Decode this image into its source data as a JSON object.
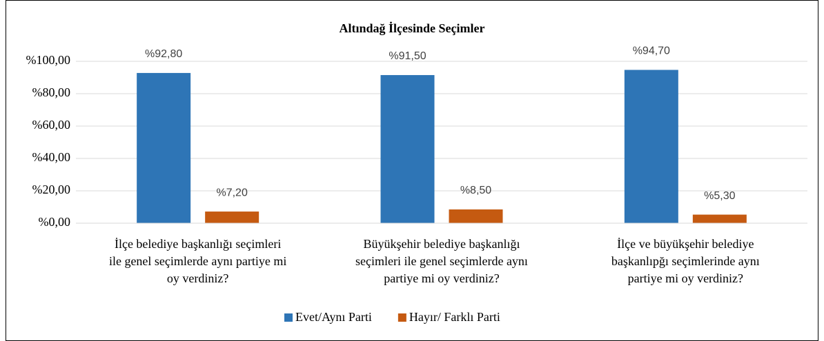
{
  "chart_data": {
    "type": "bar",
    "title": "Altındağ İlçesinde Seçimler",
    "categories": [
      [
        "İlçe belediye başkanlığı seçimleri",
        "ile genel seçimlerde aynı partiye mi",
        "oy verdiniz?"
      ],
      [
        "Büyükşehir belediye başkanlığı",
        "seçimleri ile genel seçimlerde aynı",
        "partiye mi oy verdiniz?"
      ],
      [
        "İlçe ve büyükşehir belediye",
        "başkanlıpğı seçimlerinde aynı",
        "partiye mi oy verdiniz?"
      ]
    ],
    "series": [
      {
        "name": "Evet/Aynı Parti",
        "color": "#2e75b6",
        "values": [
          92.8,
          91.5,
          94.7
        ],
        "value_labels": [
          "%92,80",
          "%91,50",
          "%94,70"
        ]
      },
      {
        "name": "Hayır/ Farklı Parti",
        "color": "#c55a11",
        "values": [
          7.2,
          8.5,
          5.3
        ],
        "value_labels": [
          "%7,20",
          "%8,50",
          "%5,30"
        ]
      }
    ],
    "ylim": [
      0,
      100
    ],
    "yticks": [
      {
        "value": 0,
        "label": "%0,00"
      },
      {
        "value": 20,
        "label": "%20,00"
      },
      {
        "value": 40,
        "label": "%40,00"
      },
      {
        "value": 60,
        "label": "%60,00"
      },
      {
        "value": 80,
        "label": "%80,00"
      },
      {
        "value": 100,
        "label": "%100,00"
      }
    ],
    "grid": true,
    "legend": "bottom"
  }
}
